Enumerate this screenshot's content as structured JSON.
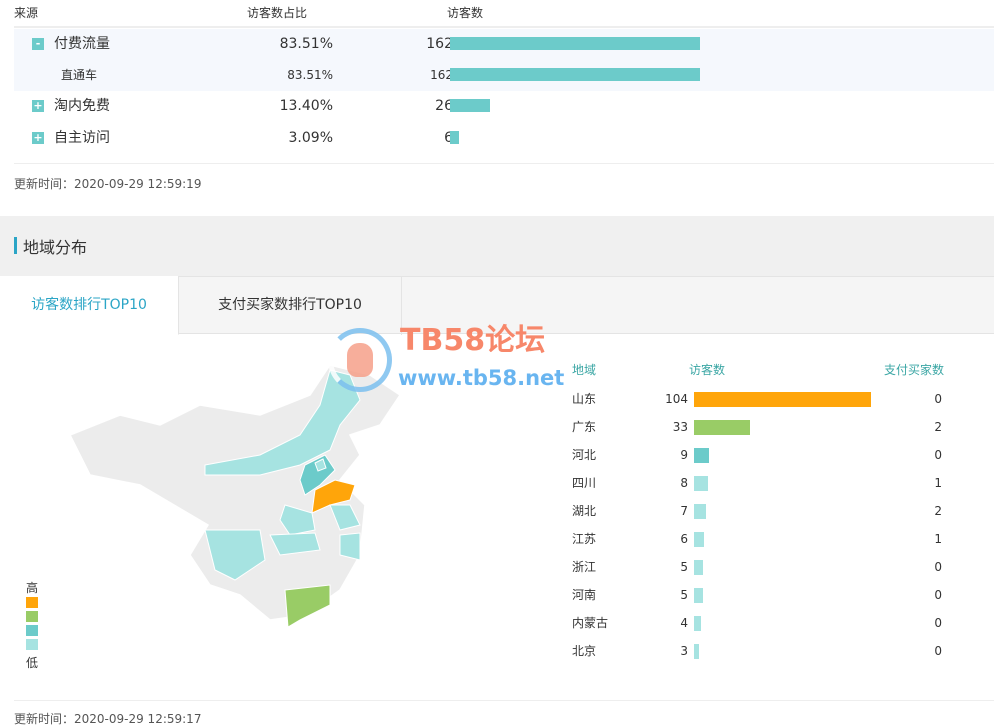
{
  "source_table": {
    "headers": [
      "来源",
      "访客数占比",
      "访客数"
    ],
    "rows": [
      {
        "toggle": "-",
        "name": "付费流量",
        "pct": "83.51%",
        "count": "162",
        "value": 162,
        "highlight": true
      },
      {
        "toggle": "",
        "name": "直通车",
        "pct": "83.51%",
        "count": "162",
        "value": 162,
        "highlight": true,
        "child": true
      },
      {
        "toggle": "+",
        "name": "淘内免费",
        "pct": "13.40%",
        "count": "26",
        "value": 26
      },
      {
        "toggle": "+",
        "name": "自主访问",
        "pct": "3.09%",
        "count": "6",
        "value": 6
      }
    ],
    "max": 162,
    "bar_color": "#6ccbca",
    "updated": "更新时间：2020-09-29 12:59:19"
  },
  "region": {
    "title": "地域分布",
    "tabs": [
      {
        "label": "访客数排行TOP10",
        "active": true
      },
      {
        "label": "支付买家数排行TOP10",
        "active": false
      }
    ],
    "headers": [
      "地域",
      "访客数",
      "支付买家数"
    ],
    "rows": [
      {
        "name": "山东",
        "visitors": "104",
        "value": 104,
        "buyers": "0",
        "color": "#ffa50a"
      },
      {
        "name": "广东",
        "visitors": "33",
        "value": 33,
        "buyers": "2",
        "color": "#99cc66"
      },
      {
        "name": "河北",
        "visitors": "9",
        "value": 9,
        "buyers": "0",
        "color": "#6ccbca"
      },
      {
        "name": "四川",
        "visitors": "8",
        "value": 8,
        "buyers": "1",
        "color": "#a6e3e1"
      },
      {
        "name": "湖北",
        "visitors": "7",
        "value": 7,
        "buyers": "2",
        "color": "#a6e3e1"
      },
      {
        "name": "江苏",
        "visitors": "6",
        "value": 6,
        "buyers": "1",
        "color": "#a6e3e1"
      },
      {
        "name": "浙江",
        "visitors": "5",
        "value": 5,
        "buyers": "0",
        "color": "#a6e3e1"
      },
      {
        "name": "河南",
        "visitors": "5",
        "value": 5,
        "buyers": "0",
        "color": "#a6e3e1"
      },
      {
        "name": "内蒙古",
        "visitors": "4",
        "value": 4,
        "buyers": "0",
        "color": "#a6e3e1"
      },
      {
        "name": "北京",
        "visitors": "3",
        "value": 3,
        "buyers": "0",
        "color": "#a6e3e1"
      }
    ],
    "max": 104,
    "legend": {
      "high": "高",
      "low": "低",
      "colors": [
        "#ffa50a",
        "#99cc66",
        "#6ccbca",
        "#a6e3e1"
      ]
    },
    "updated": "更新时间：2020-09-29 12:59:17"
  },
  "watermark": {
    "line1": "TB58论坛",
    "line2": "www.tb58.net"
  }
}
